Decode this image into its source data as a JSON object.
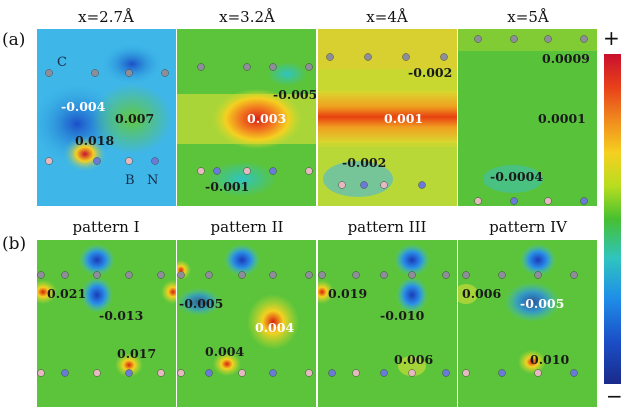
{
  "row_a": {
    "label": "(a)",
    "panels": [
      {
        "title": "x=2.7Å",
        "values": [
          "-0.004",
          "0.007",
          "0.018"
        ],
        "atom_labels": [
          "C",
          "B",
          "N"
        ]
      },
      {
        "title": "x=3.2Å",
        "values": [
          "-0.005",
          "0.003",
          "-0.001"
        ]
      },
      {
        "title": "x=4Å",
        "values": [
          "-0.002",
          "0.001",
          "-0.002"
        ]
      },
      {
        "title": "x=5Å",
        "values": [
          "0.0009",
          "0.0001",
          "-0.0004"
        ]
      }
    ]
  },
  "row_b": {
    "label": "(b)",
    "panels": [
      {
        "title": "pattern I",
        "values": [
          "0.021",
          "-0.013",
          "0.017"
        ]
      },
      {
        "title": "pattern II",
        "values": [
          "-0.005",
          "0.004",
          "0.004"
        ]
      },
      {
        "title": "pattern III",
        "values": [
          "0.019",
          "-0.010",
          "0.006"
        ]
      },
      {
        "title": "pattern IV",
        "values": [
          "0.006",
          "-0.005",
          "0.010"
        ]
      }
    ]
  },
  "colorbar": {
    "max_label": "+",
    "min_label": "−",
    "top_color": "#c8102e",
    "bottom_color": "#1a2a8a"
  }
}
